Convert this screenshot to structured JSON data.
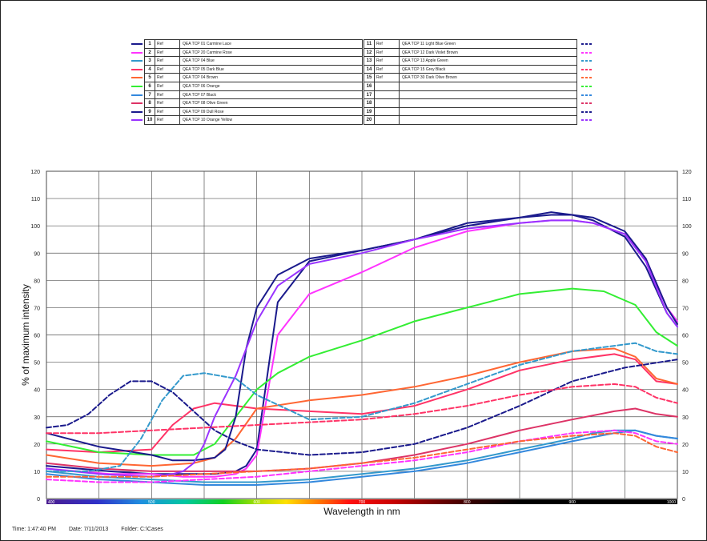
{
  "legend": {
    "rows": [
      {
        "num": "1",
        "ref": "Ref",
        "name": "QEA TCP 01 Carmine Lace",
        "color": "#1a1a8c",
        "dash": false
      },
      {
        "num": "2",
        "ref": "Ref",
        "name": "QEA TCP 20 Carmine Rose",
        "color": "#ff33ff",
        "dash": false
      },
      {
        "num": "3",
        "ref": "Ref",
        "name": "QEA TCP 04 Blue",
        "color": "#3399cc",
        "dash": false
      },
      {
        "num": "4",
        "ref": "Ref",
        "name": "QEA TCP 05 Dark Blue",
        "color": "#ff3366",
        "dash": false
      },
      {
        "num": "5",
        "ref": "Ref",
        "name": "QEA TCP 04 Brown",
        "color": "#ff6633",
        "dash": false
      },
      {
        "num": "6",
        "ref": "Ref",
        "name": "QEA TCP 06 Orange",
        "color": "#33ee33",
        "dash": false
      },
      {
        "num": "7",
        "ref": "Ref",
        "name": "QEA TCP 07 Black",
        "color": "#3388dd",
        "dash": false
      },
      {
        "num": "8",
        "ref": "Ref",
        "name": "QEA TCP 08 Olive Green",
        "color": "#dd3366",
        "dash": false
      },
      {
        "num": "9",
        "ref": "Ref",
        "name": "QEA TCP 09 Dull Rose",
        "color": "#1a1a8c",
        "dash": false
      },
      {
        "num": "10",
        "ref": "Ref",
        "name": "QEA TCP 10 Orange Yellow",
        "color": "#9933ff",
        "dash": false
      },
      {
        "num": "11",
        "ref": "Ref",
        "name": "QEA TCP 11 Light Blue Green",
        "color": "#1a1a8c",
        "dash": true
      },
      {
        "num": "12",
        "ref": "Ref",
        "name": "QEA TCP 12 Dark Violet Brown",
        "color": "#ff33ff",
        "dash": true
      },
      {
        "num": "13",
        "ref": "Ref",
        "name": "QEA TCP 13 Apple Green",
        "color": "#3399cc",
        "dash": true
      },
      {
        "num": "14",
        "ref": "Ref",
        "name": "QEA TCP 15 Grey Black",
        "color": "#ff3366",
        "dash": true
      },
      {
        "num": "15",
        "ref": "Ref",
        "name": "QEA TCP 30 Dark Olive Brown",
        "color": "#ff6633",
        "dash": true
      },
      {
        "num": "16",
        "ref": "",
        "name": "",
        "color": "#33ee33",
        "dash": true
      },
      {
        "num": "17",
        "ref": "",
        "name": "",
        "color": "#3388dd",
        "dash": true
      },
      {
        "num": "18",
        "ref": "",
        "name": "",
        "color": "#dd3366",
        "dash": true
      },
      {
        "num": "19",
        "ref": "",
        "name": "",
        "color": "#1a1a8c",
        "dash": true
      },
      {
        "num": "20",
        "ref": "",
        "name": "",
        "color": "#9933ff",
        "dash": true
      }
    ]
  },
  "footer": {
    "time": "Time: 1:47:40 PM",
    "date": "Date: 7/11/2013",
    "folder": "Folder: C:\\Cases"
  },
  "chart_data": {
    "type": "line",
    "xlabel": "Wavelength in nm",
    "ylabel": "% of maximum intensity",
    "xlim": [
      400,
      1000
    ],
    "ylim": [
      0,
      120
    ],
    "x_ticks": [
      "400",
      "500",
      "600",
      "700",
      "800",
      "900",
      "1000"
    ],
    "y_ticks": [
      0,
      10,
      20,
      30,
      40,
      50,
      60,
      70,
      80,
      90,
      100,
      110,
      120
    ],
    "grid": true,
    "series": [
      {
        "name": "1",
        "color": "#1a1a8c",
        "dash": false,
        "x": [
          400,
          430,
          460,
          500,
          530,
          560,
          580,
          590,
          600,
          620,
          650,
          700,
          750,
          800,
          850,
          880,
          900,
          920,
          950,
          970,
          990,
          1000
        ],
        "y": [
          12,
          11,
          10,
          9,
          9,
          9,
          10,
          12,
          18,
          72,
          87,
          91,
          95,
          101,
          103,
          105,
          104,
          102,
          96,
          85,
          68,
          63
        ]
      },
      {
        "name": "2",
        "color": "#ff33ff",
        "dash": false,
        "x": [
          400,
          430,
          460,
          500,
          530,
          560,
          580,
          590,
          600,
          620,
          650,
          700,
          750,
          800,
          850,
          880,
          900,
          920,
          950,
          970,
          990,
          1000
        ],
        "y": [
          11,
          10,
          9,
          9,
          8,
          8,
          9,
          11,
          16,
          60,
          75,
          83,
          92,
          98,
          101,
          102,
          102,
          101,
          97,
          88,
          70,
          65
        ]
      },
      {
        "name": "3",
        "color": "#3399cc",
        "dash": false,
        "x": [
          400,
          450,
          500,
          550,
          600,
          650,
          700,
          750,
          800,
          850,
          900,
          920,
          940,
          960,
          980,
          1000
        ],
        "y": [
          10,
          8,
          7,
          6,
          6,
          7,
          9,
          11,
          14,
          18,
          22,
          24,
          25,
          25,
          23,
          22
        ]
      },
      {
        "name": "4",
        "color": "#ff3366",
        "dash": false,
        "x": [
          400,
          450,
          500,
          520,
          540,
          560,
          580,
          600,
          650,
          700,
          750,
          800,
          850,
          900,
          940,
          960,
          980,
          1000
        ],
        "y": [
          18,
          17,
          18,
          27,
          33,
          35,
          34,
          33,
          32,
          31,
          34,
          40,
          47,
          51,
          53,
          51,
          43,
          42
        ]
      },
      {
        "name": "5",
        "color": "#ff6633",
        "dash": false,
        "x": [
          400,
          450,
          500,
          540,
          560,
          580,
          600,
          650,
          700,
          750,
          800,
          850,
          900,
          940,
          960,
          980,
          1000
        ],
        "y": [
          16,
          13,
          12,
          13,
          15,
          22,
          33,
          36,
          38,
          41,
          45,
          50,
          54,
          55,
          52,
          44,
          42
        ]
      },
      {
        "name": "6",
        "color": "#33ee33",
        "dash": false,
        "x": [
          400,
          450,
          500,
          540,
          560,
          580,
          600,
          620,
          650,
          700,
          750,
          800,
          850,
          900,
          930,
          960,
          980,
          1000
        ],
        "y": [
          21,
          17,
          16,
          16,
          20,
          30,
          40,
          46,
          52,
          58,
          65,
          70,
          75,
          77,
          76,
          71,
          61,
          56
        ]
      },
      {
        "name": "7",
        "color": "#3388dd",
        "dash": false,
        "x": [
          400,
          450,
          500,
          550,
          600,
          650,
          700,
          750,
          800,
          850,
          900,
          940,
          960,
          980,
          1000
        ],
        "y": [
          9,
          7,
          6,
          5,
          5,
          6,
          8,
          10,
          13,
          17,
          21,
          24,
          25,
          23,
          22
        ]
      },
      {
        "name": "8",
        "color": "#dd3366",
        "dash": false,
        "x": [
          400,
          450,
          500,
          550,
          600,
          650,
          700,
          750,
          800,
          850,
          900,
          940,
          960,
          980,
          1000
        ],
        "y": [
          13,
          11,
          10,
          10,
          10,
          11,
          13,
          16,
          20,
          25,
          29,
          32,
          33,
          31,
          30
        ]
      },
      {
        "name": "9",
        "color": "#1a1a8c",
        "dash": false,
        "x": [
          400,
          450,
          500,
          520,
          540,
          560,
          570,
          580,
          590,
          600,
          620,
          650,
          700,
          750,
          800,
          850,
          880,
          900,
          920,
          950,
          970,
          990,
          1000
        ],
        "y": [
          24,
          19,
          16,
          14,
          14,
          15,
          18,
          30,
          55,
          70,
          82,
          88,
          91,
          95,
          100,
          103,
          104,
          104,
          103,
          98,
          88,
          70,
          64
        ]
      },
      {
        "name": "10",
        "color": "#9933ff",
        "dash": false,
        "x": [
          400,
          450,
          500,
          520,
          530,
          540,
          550,
          560,
          580,
          600,
          620,
          650,
          700,
          750,
          800,
          850,
          880,
          900,
          920,
          950,
          970,
          990,
          1000
        ],
        "y": [
          11,
          9,
          8,
          9,
          10,
          13,
          20,
          30,
          45,
          65,
          78,
          86,
          90,
          95,
          99,
          101,
          102,
          102,
          101,
          97,
          87,
          68,
          63
        ]
      },
      {
        "name": "11",
        "color": "#1a1a8c",
        "dash": true,
        "x": [
          400,
          420,
          440,
          460,
          480,
          500,
          520,
          540,
          560,
          580,
          600,
          650,
          700,
          750,
          800,
          850,
          900,
          950,
          1000
        ],
        "y": [
          26,
          27,
          31,
          38,
          43,
          43,
          39,
          32,
          25,
          21,
          18,
          16,
          17,
          20,
          26,
          34,
          43,
          48,
          51
        ]
      },
      {
        "name": "12",
        "color": "#ff33ff",
        "dash": true,
        "x": [
          400,
          450,
          500,
          550,
          600,
          650,
          700,
          750,
          800,
          850,
          900,
          940,
          960,
          980,
          1000
        ],
        "y": [
          7,
          6,
          6,
          7,
          8,
          10,
          12,
          14,
          17,
          21,
          24,
          25,
          24,
          21,
          20
        ]
      },
      {
        "name": "13",
        "color": "#3399cc",
        "dash": true,
        "x": [
          400,
          440,
          470,
          490,
          510,
          530,
          550,
          580,
          600,
          650,
          700,
          750,
          800,
          850,
          900,
          940,
          960,
          980,
          1000
        ],
        "y": [
          10,
          10,
          12,
          22,
          36,
          45,
          46,
          44,
          38,
          29,
          30,
          35,
          42,
          49,
          54,
          56,
          57,
          54,
          53
        ]
      },
      {
        "name": "14",
        "color": "#ff3366",
        "dash": true,
        "x": [
          400,
          450,
          500,
          550,
          600,
          650,
          700,
          750,
          800,
          850,
          900,
          940,
          960,
          980,
          1000
        ],
        "y": [
          24,
          24,
          25,
          26,
          27,
          28,
          29,
          31,
          34,
          38,
          41,
          42,
          41,
          37,
          35
        ]
      },
      {
        "name": "15",
        "color": "#ff6633",
        "dash": true,
        "x": [
          400,
          450,
          500,
          550,
          600,
          650,
          700,
          750,
          800,
          850,
          900,
          940,
          960,
          980,
          1000
        ],
        "y": [
          8,
          8,
          8,
          9,
          10,
          11,
          13,
          15,
          18,
          21,
          23,
          24,
          23,
          19,
          17
        ]
      }
    ]
  }
}
